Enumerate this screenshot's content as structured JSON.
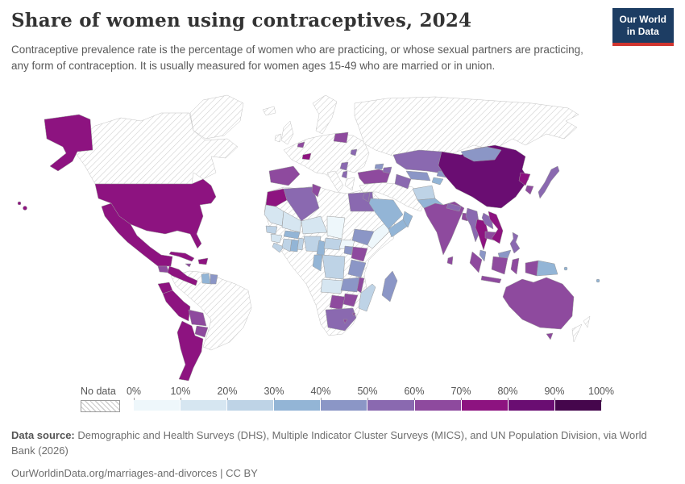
{
  "header": {
    "title": "Share of women using contraceptives, 2024",
    "subtitle": "Contraceptive prevalence rate is the percentage of women who are practicing, or whose sexual partners are practicing, any form of contraception. It is usually measured for women ages 15-49 who are married or in union.",
    "logo_line1": "Our World",
    "logo_line2": "in Data",
    "logo_bg": "#1d3d63",
    "logo_accent": "#d0352f"
  },
  "legend": {
    "no_data_label": "No data",
    "ticks": [
      "0%",
      "10%",
      "20%",
      "30%",
      "40%",
      "50%",
      "60%",
      "70%",
      "80%",
      "90%",
      "100%"
    ]
  },
  "footer": {
    "data_source_label": "Data source:",
    "data_source_text": " Demographic and Health Surveys (DHS), Multiple Indicator Cluster Surveys (MICS), and UN Population Division, via World Bank (2026)",
    "citation": "OurWorldinData.org/marriages-and-divorces | CC BY"
  },
  "chart_data": {
    "type": "heatmap",
    "subtype": "choropleth-world-map",
    "title": "Share of women using contraceptives, 2024",
    "unit": "% of women ages 15-49",
    "bins": [
      "0-10%",
      "10-20%",
      "20-30%",
      "30-40%",
      "40-50%",
      "50-60%",
      "60-70%",
      "70-80%",
      "80-90%",
      "90-100%"
    ],
    "scale_colors": [
      "#eef7fb",
      "#d6e6f1",
      "#bed3e6",
      "#93b5d6",
      "#8b96c6",
      "#8a69b0",
      "#8e4a9e",
      "#8d1380",
      "#6a0d72",
      "#45064c"
    ],
    "no_data_style": "diagonal-hatch",
    "legend_position": "bottom",
    "countries_note": "Each entry is [country, bin-index 0-9 from the bins array, or 'nd' for no data], as read from the map colors.",
    "countries": [
      [
        "United States",
        7
      ],
      [
        "Canada",
        "nd"
      ],
      [
        "Greenland",
        "nd"
      ],
      [
        "Mexico",
        7
      ],
      [
        "Guatemala",
        6
      ],
      [
        "Honduras",
        7
      ],
      [
        "Nicaragua",
        7
      ],
      [
        "Costa Rica",
        7
      ],
      [
        "Panama",
        7
      ],
      [
        "Cuba",
        7
      ],
      [
        "Jamaica",
        6
      ],
      [
        "Haiti",
        7
      ],
      [
        "Dominican Republic",
        7
      ],
      [
        "Colombia",
        "nd"
      ],
      [
        "Venezuela",
        "nd"
      ],
      [
        "Brazil",
        "nd"
      ],
      [
        "Uruguay",
        "nd"
      ],
      [
        "Guyana",
        3
      ],
      [
        "Suriname",
        4
      ],
      [
        "Ecuador",
        7
      ],
      [
        "Peru",
        7
      ],
      [
        "Bolivia",
        6
      ],
      [
        "Paraguay",
        6
      ],
      [
        "Argentina",
        7
      ],
      [
        "Chile",
        7
      ],
      [
        "Iceland",
        "nd"
      ],
      [
        "United Kingdom",
        "nd"
      ],
      [
        "Ireland",
        "nd"
      ],
      [
        "Norway",
        "nd"
      ],
      [
        "Sweden",
        "nd"
      ],
      [
        "Finland",
        "nd"
      ],
      [
        "France",
        "nd"
      ],
      [
        "Germany",
        "nd"
      ],
      [
        "Poland",
        "nd"
      ],
      [
        "Italy",
        "nd"
      ],
      [
        "Greece",
        "nd"
      ],
      [
        "Ukraine",
        "nd"
      ],
      [
        "Russia",
        "nd"
      ],
      [
        "Spain",
        6
      ],
      [
        "Portugal",
        6
      ],
      [
        "Belgium",
        6
      ],
      [
        "Switzerland",
        7
      ],
      [
        "Belarus",
        6
      ],
      [
        "Moldova",
        5
      ],
      [
        "Serbia",
        5
      ],
      [
        "Albania",
        5
      ],
      [
        "Turkey",
        6
      ],
      [
        "Morocco",
        7
      ],
      [
        "Algeria",
        5
      ],
      [
        "Tunisia",
        6
      ],
      [
        "Libya",
        "nd"
      ],
      [
        "Egypt",
        5
      ],
      [
        "Sudan",
        "nd"
      ],
      [
        "Mauritania",
        1
      ],
      [
        "Senegal",
        2
      ],
      [
        "Guinea",
        1
      ],
      [
        "Sierra Leone",
        2
      ],
      [
        "Cote d'Ivoire",
        2
      ],
      [
        "Ghana",
        3
      ],
      [
        "Benin",
        2
      ],
      [
        "Burkina Faso",
        3
      ],
      [
        "Mali",
        1
      ],
      [
        "Niger",
        1
      ],
      [
        "Nigeria",
        2
      ],
      [
        "Chad",
        0
      ],
      [
        "Cameroon",
        3
      ],
      [
        "Central African Republic",
        2
      ],
      [
        "South Sudan",
        0
      ],
      [
        "Ethiopia",
        4
      ],
      [
        "Somalia",
        0
      ],
      [
        "Kenya",
        6
      ],
      [
        "Uganda",
        4
      ],
      [
        "Tanzania",
        4
      ],
      [
        "Democratic Republic of Congo",
        2
      ],
      [
        "Congo",
        3
      ],
      [
        "Angola",
        1
      ],
      [
        "Zambia",
        4
      ],
      [
        "Malawi",
        6
      ],
      [
        "Mozambique",
        2
      ],
      [
        "Zimbabwe",
        6
      ],
      [
        "Botswana",
        6
      ],
      [
        "Namibia",
        "nd"
      ],
      [
        "South Africa",
        5
      ],
      [
        "Lesotho",
        6
      ],
      [
        "Eswatini",
        6
      ],
      [
        "Madagascar",
        4
      ],
      [
        "Syria",
        "nd"
      ],
      [
        "Iraq",
        "nd"
      ],
      [
        "Iran",
        "nd"
      ],
      [
        "Jordan",
        5
      ],
      [
        "Saudi Arabia",
        3
      ],
      [
        "Yemen",
        3
      ],
      [
        "Oman",
        3
      ],
      [
        "Georgia",
        4
      ],
      [
        "Azerbaijan",
        5
      ],
      [
        "Kazakhstan",
        5
      ],
      [
        "Uzbekistan",
        4
      ],
      [
        "Turkmenistan",
        5
      ],
      [
        "Kyrgyzstan",
        4
      ],
      [
        "Tajikistan",
        3
      ],
      [
        "Afghanistan",
        2
      ],
      [
        "Pakistan",
        3
      ],
      [
        "India",
        6
      ],
      [
        "Nepal",
        5
      ],
      [
        "Bangladesh",
        6
      ],
      [
        "Sri Lanka",
        6
      ],
      [
        "Myanmar",
        5
      ],
      [
        "Thailand",
        7
      ],
      [
        "Laos",
        5
      ],
      [
        "Cambodia",
        6
      ],
      [
        "Vietnam",
        7
      ],
      [
        "China",
        8
      ],
      [
        "Mongolia",
        4
      ],
      [
        "North Korea",
        7
      ],
      [
        "South Korea",
        6
      ],
      [
        "Japan",
        5
      ],
      [
        "Philippines",
        5
      ],
      [
        "Malaysia",
        4
      ],
      [
        "Indonesia",
        6
      ],
      [
        "Papua New Guinea",
        3
      ],
      [
        "Solomon Islands",
        3
      ],
      [
        "Fiji",
        3
      ],
      [
        "Australia",
        6
      ],
      [
        "New Zealand",
        "nd"
      ]
    ]
  }
}
